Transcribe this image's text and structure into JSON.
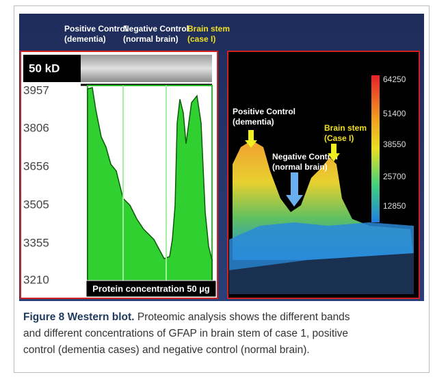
{
  "figure": {
    "top_labels": [
      {
        "line1": "Positive Control",
        "line2": "(dementia)"
      },
      {
        "line1": "Negative Control",
        "line2": "(normal brain)"
      },
      {
        "line1": "Brain stem",
        "line2": "(case I)"
      }
    ],
    "left_panel": {
      "band_label": "50 kD",
      "axis_labels": [
        "3957",
        "3806",
        "3656",
        "3505",
        "3355",
        "3210"
      ],
      "footer": "Protein concentration 50 µg"
    },
    "right_panel": {
      "labels": [
        {
          "line1": "Positive Control",
          "line2": "(dementia)"
        },
        {
          "line1": "Negative Control",
          "line2": "(normal brain)"
        },
        {
          "line1": "Brain stem",
          "line2": "(Case I)"
        }
      ],
      "colorbar_labels": [
        "64250",
        "51400",
        "38550",
        "25700",
        "12850"
      ]
    }
  },
  "caption": {
    "label": "Figure 8 Western blot.",
    "lines": [
      "Proteomic analysis shows the different bands",
      "and different concentrations of GFAP in brain stem of case 1, positive",
      "control (dementia cases) and negative control (normal brain)."
    ]
  }
}
